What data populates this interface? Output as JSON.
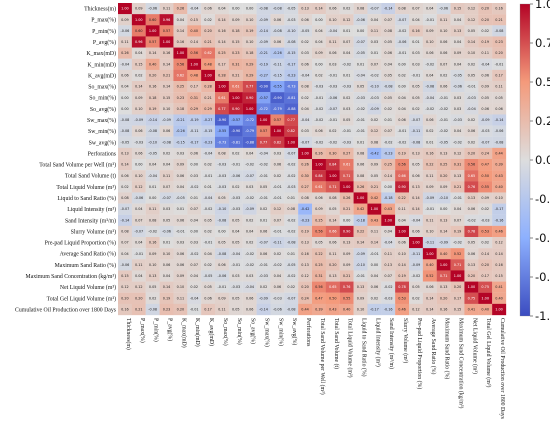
{
  "chart_data": {
    "type": "heatmap",
    "title": "",
    "labels": [
      "Thickness(m)",
      "P_max(%)",
      "P_min(%)",
      "P_avg(%)",
      "K_max(mD)",
      "K_min(mD)",
      "K_avg(mD)",
      "So_max(%)",
      "So_min(%)",
      "So_avg(%)",
      "Sw_max(%)",
      "Sw_min(%)",
      "Sw_avg(%)",
      "Perforations",
      "Total Sand Volume per Well (m³)",
      "Total Sand Volume (t)",
      "Total Liquid Volume (m³)",
      "Liquid to Sand Ratio (%)",
      "Liquid Intensity (m³)",
      "Sand Intensity (m³/m)",
      "Slurry Volume (m³)",
      "Pre-pad Liquid Proportion (%)",
      "Average Sand Ratio (%)",
      "Maximum Sand Ratio (%)",
      "Maximum Sand Concentration (kg/m³)",
      "Net Liquid Volume (m³)",
      "Total Gel Liquid Volume (m³)",
      "Cumulative Oil Production over 1800 Days"
    ],
    "values": [
      [
        1.0,
        0.09,
        -0.06,
        0.11,
        0.26,
        -0.04,
        0.06,
        0.04,
        0.0,
        0.0,
        -0.08,
        -0.08,
        -0.05,
        0.13,
        0.14,
        0.06,
        0.02,
        0.08,
        -0.07,
        -0.14,
        0.08,
        0.07,
        0.04,
        -0.06,
        0.15,
        0.12,
        0.2,
        0.16
      ],
      [
        0.09,
        1.0,
        0.6,
        0.96,
        0.04,
        0.15,
        0.02,
        0.14,
        0.09,
        0.1,
        -0.09,
        0.06,
        -0.03,
        0.06,
        0.0,
        0.1,
        0.12,
        -0.06,
        0.04,
        0.07,
        -0.07,
        0.04,
        -0.01,
        0.11,
        0.04,
        0.12,
        0.2,
        0.21
      ],
      [
        -0.06,
        0.6,
        1.0,
        0.57,
        0.14,
        0.4,
        0.2,
        0.16,
        0.18,
        0.19,
        -0.14,
        -0.08,
        -0.1,
        -0.05,
        0.04,
        -0.04,
        0.01,
        0.0,
        0.11,
        0.08,
        -0.02,
        0.16,
        0.09,
        0.1,
        0.13,
        0.05,
        0.02,
        -0.08
      ],
      [
        0.11,
        0.96,
        0.57,
        1.0,
        0.16,
        0.14,
        0.21,
        0.14,
        0.15,
        0.1,
        -0.09,
        0.06,
        -0.08,
        0.02,
        0.04,
        0.11,
        0.07,
        -0.07,
        0.03,
        0.05,
        -0.06,
        0.01,
        0.1,
        0.06,
        0.04,
        0.14,
        0.19,
        0.23
      ],
      [
        0.26,
        0.04,
        0.14,
        0.16,
        1.0,
        0.56,
        0.62,
        0.25,
        0.23,
        0.18,
        -0.21,
        -0.26,
        -0.15,
        0.03,
        0.09,
        0.06,
        0.04,
        -0.05,
        0.01,
        0.06,
        -0.01,
        0.03,
        0.06,
        0.06,
        0.09,
        0.1,
        0.11,
        0.2
      ],
      [
        -0.04,
        0.15,
        0.4,
        0.14,
        0.56,
        1.0,
        0.48,
        0.17,
        0.31,
        0.29,
        -0.19,
        -0.11,
        -0.17,
        0.06,
        0.0,
        0.03,
        -0.02,
        0.01,
        0.07,
        0.04,
        0.0,
        0.03,
        -0.02,
        0.07,
        0.04,
        0.02,
        -0.04,
        -0.01
      ],
      [
        0.06,
        0.02,
        0.2,
        0.21,
        0.62,
        0.48,
        1.0,
        0.28,
        0.21,
        0.29,
        -0.27,
        -0.15,
        -0.23,
        -0.04,
        0.02,
        -0.01,
        0.01,
        -0.04,
        -0.02,
        0.05,
        0.02,
        -0.01,
        0.04,
        0.02,
        -0.05,
        0.05,
        0.06,
        0.17
      ],
      [
        0.04,
        0.14,
        0.16,
        0.14,
        0.25,
        0.17,
        0.28,
        1.0,
        0.61,
        0.77,
        -0.9,
        -0.55,
        -0.73,
        0.08,
        -0.03,
        -0.03,
        -0.03,
        0.05,
        -0.1,
        -0.08,
        0.0,
        0.05,
        -0.08,
        0.06,
        -0.06,
        -0.01,
        0.09,
        0.11
      ],
      [
        0.0,
        0.09,
        0.18,
        0.15,
        0.23,
        0.31,
        0.21,
        0.61,
        1.0,
        0.9,
        -0.57,
        -0.9,
        -0.81,
        0.02,
        -0.01,
        -0.06,
        0.02,
        -0.03,
        -0.03,
        0.05,
        0.04,
        0.05,
        -0.04,
        -0.01,
        0.03,
        -0.03,
        0.05,
        0.05
      ],
      [
        0.0,
        0.1,
        0.19,
        0.1,
        0.18,
        0.29,
        0.29,
        0.77,
        0.9,
        1.0,
        -0.72,
        -0.79,
        -0.88,
        0.04,
        -0.02,
        -0.07,
        0.03,
        -0.02,
        -0.09,
        0.02,
        0.04,
        0.02,
        -0.02,
        -0.02,
        0.03,
        -0.04,
        0.06,
        0.06
      ],
      [
        -0.08,
        -0.09,
        -0.14,
        -0.09,
        -0.21,
        -0.19,
        -0.27,
        -0.9,
        -0.57,
        -0.72,
        1.0,
        0.57,
        0.77,
        -0.04,
        -0.02,
        -0.01,
        0.05,
        -0.01,
        0.02,
        0.01,
        0.06,
        -0.07,
        0.06,
        -0.01,
        -0.03,
        0.02,
        -0.09,
        -0.14
      ],
      [
        -0.08,
        0.06,
        -0.08,
        0.06,
        -0.26,
        -0.11,
        -0.15,
        -0.55,
        -0.9,
        -0.79,
        0.57,
        1.0,
        0.82,
        0.03,
        0.06,
        0.02,
        -0.01,
        -0.01,
        0.12,
        0.07,
        -0.01,
        -0.11,
        0.02,
        -0.02,
        0.04,
        0.06,
        -0.03,
        -0.06
      ],
      [
        -0.05,
        -0.03,
        -0.1,
        -0.08,
        -0.15,
        -0.17,
        -0.23,
        -0.73,
        -0.81,
        -0.88,
        0.77,
        0.82,
        1.0,
        -0.07,
        -0.02,
        -0.02,
        -0.03,
        0.01,
        0.08,
        -0.02,
        -0.02,
        -0.08,
        0.01,
        -0.05,
        -0.02,
        0.02,
        -0.07,
        -0.08
      ],
      [
        0.13,
        0.06,
        -0.05,
        0.02,
        0.03,
        0.06,
        -0.04,
        0.08,
        0.02,
        0.04,
        -0.04,
        0.03,
        -0.07,
        1.0,
        0.26,
        0.3,
        0.27,
        0.08,
        -0.42,
        -0.23,
        0.19,
        0.13,
        0.16,
        0.13,
        0.12,
        0.2,
        0.24,
        0.44
      ],
      [
        0.14,
        0.0,
        0.04,
        0.04,
        0.09,
        0.0,
        0.02,
        -0.03,
        -0.01,
        -0.02,
        -0.02,
        0.06,
        -0.02,
        0.26,
        1.0,
        0.84,
        0.61,
        0.06,
        0.09,
        0.25,
        0.56,
        0.05,
        0.22,
        0.25,
        0.31,
        0.56,
        0.47,
        0.39
      ],
      [
        0.06,
        0.1,
        -0.04,
        0.11,
        0.06,
        0.03,
        -0.01,
        -0.03,
        -0.06,
        -0.07,
        -0.01,
        0.02,
        -0.02,
        0.3,
        0.84,
        1.0,
        0.71,
        0.08,
        0.05,
        0.14,
        0.66,
        0.06,
        0.11,
        0.2,
        0.13,
        0.65,
        0.5,
        0.43
      ],
      [
        0.02,
        0.12,
        0.01,
        0.07,
        0.04,
        -0.02,
        0.01,
        -0.03,
        0.02,
        0.03,
        0.05,
        -0.01,
        -0.03,
        0.27,
        0.61,
        0.71,
        1.0,
        0.26,
        0.21,
        0.0,
        0.9,
        0.13,
        0.09,
        0.09,
        0.21,
        0.76,
        0.55,
        0.4
      ],
      [
        0.08,
        -0.06,
        0.0,
        -0.07,
        -0.05,
        0.01,
        -0.04,
        0.05,
        -0.03,
        -0.02,
        -0.01,
        -0.01,
        0.01,
        0.08,
        0.06,
        0.08,
        0.26,
        1.0,
        0.42,
        -0.18,
        0.22,
        0.14,
        -0.09,
        -0.1,
        -0.01,
        0.13,
        0.09,
        0.1
      ],
      [
        -0.07,
        0.04,
        0.11,
        0.03,
        0.01,
        0.07,
        -0.02,
        -0.1,
        -0.03,
        -0.09,
        0.02,
        0.12,
        0.08,
        -0.42,
        0.09,
        0.05,
        0.21,
        0.42,
        1.0,
        0.43,
        0.11,
        0.14,
        -0.01,
        0.0,
        0.04,
        0.06,
        0.02,
        -0.17
      ],
      [
        -0.14,
        0.07,
        0.08,
        0.05,
        0.06,
        0.04,
        0.05,
        -0.08,
        0.05,
        0.02,
        0.01,
        0.07,
        -0.02,
        -0.23,
        0.25,
        0.14,
        0.0,
        -0.18,
        0.43,
        1.0,
        0.04,
        -0.04,
        0.11,
        0.13,
        0.07,
        -0.02,
        -0.03,
        -0.16
      ],
      [
        0.08,
        -0.07,
        -0.02,
        -0.06,
        -0.01,
        0.0,
        0.02,
        0.0,
        0.04,
        0.04,
        0.06,
        -0.01,
        -0.02,
        0.19,
        0.56,
        0.66,
        0.9,
        0.22,
        0.11,
        0.04,
        1.0,
        0.06,
        0.1,
        0.14,
        0.19,
        0.78,
        0.53,
        0.46
      ],
      [
        0.07,
        0.04,
        0.16,
        0.01,
        0.03,
        0.03,
        -0.01,
        0.05,
        0.05,
        0.02,
        -0.07,
        -0.11,
        -0.08,
        0.13,
        0.05,
        0.06,
        0.13,
        0.14,
        0.14,
        -0.04,
        0.06,
        1.0,
        -0.11,
        -0.09,
        -0.02,
        0.05,
        0.02,
        0.12
      ],
      [
        0.04,
        -0.01,
        0.09,
        0.1,
        0.06,
        -0.02,
        0.04,
        -0.08,
        -0.04,
        -0.02,
        0.06,
        0.02,
        0.01,
        0.16,
        0.22,
        0.11,
        0.09,
        -0.09,
        -0.01,
        0.11,
        0.1,
        -0.11,
        1.0,
        0.4,
        0.52,
        0.06,
        0.14,
        0.14
      ],
      [
        -0.06,
        0.11,
        0.1,
        0.06,
        0.06,
        0.07,
        0.02,
        0.06,
        -0.01,
        -0.02,
        -0.01,
        -0.02,
        -0.05,
        0.13,
        0.25,
        0.2,
        0.09,
        -0.1,
        0.0,
        0.13,
        0.14,
        -0.09,
        0.4,
        1.0,
        0.71,
        0.13,
        0.2,
        0.16
      ],
      [
        0.15,
        0.04,
        0.13,
        0.04,
        0.09,
        0.04,
        -0.05,
        -0.06,
        0.03,
        0.03,
        -0.03,
        0.04,
        -0.02,
        0.12,
        0.31,
        0.13,
        0.21,
        -0.01,
        0.04,
        0.07,
        0.19,
        -0.02,
        0.52,
        0.71,
        1.0,
        0.2,
        0.17,
        0.15
      ],
      [
        0.12,
        0.12,
        0.05,
        0.14,
        0.1,
        0.02,
        0.05,
        -0.01,
        -0.03,
        -0.04,
        0.02,
        0.06,
        0.02,
        0.2,
        0.56,
        0.65,
        0.76,
        0.13,
        0.06,
        -0.02,
        0.78,
        0.05,
        0.06,
        0.13,
        0.2,
        1.0,
        0.75,
        0.41
      ],
      [
        0.2,
        0.2,
        0.02,
        0.19,
        0.11,
        -0.04,
        0.06,
        0.09,
        0.05,
        0.06,
        -0.09,
        -0.03,
        -0.07,
        0.24,
        0.47,
        0.5,
        0.55,
        0.09,
        0.02,
        -0.03,
        0.53,
        0.02,
        0.14,
        0.2,
        0.17,
        0.75,
        1.0,
        0.4
      ],
      [
        0.16,
        0.21,
        -0.08,
        0.23,
        0.2,
        -0.01,
        0.17,
        0.11,
        0.05,
        0.06,
        -0.14,
        -0.06,
        -0.08,
        0.44,
        0.39,
        0.43,
        0.4,
        0.1,
        -0.17,
        -0.16,
        0.46,
        0.12,
        0.14,
        0.16,
        0.15,
        0.41,
        0.4,
        1.0
      ]
    ],
    "colorbar": {
      "ticks": [
        "1.00",
        "0.75",
        "0.50",
        "0.25",
        "0.00",
        "-0.25",
        "-0.50",
        "-0.75",
        "-1.00"
      ],
      "range": [
        -1,
        1
      ],
      "colors": {
        "neg": "#3b4cc0",
        "mid": "#dddddd",
        "pos": "#b40426"
      }
    },
    "grid": false,
    "legend": "colorbar-right"
  }
}
